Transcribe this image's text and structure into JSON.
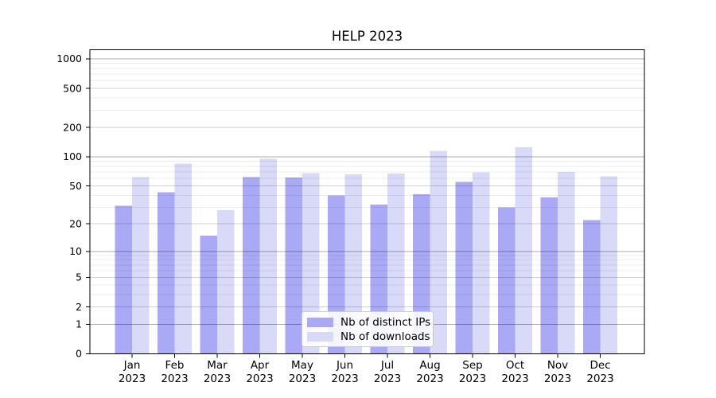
{
  "chart_data": {
    "type": "bar",
    "title": "HELP 2023",
    "categories": [
      "Jan 2023",
      "Feb 2023",
      "Mar 2023",
      "Apr 2023",
      "May 2023",
      "Jun 2023",
      "Jul 2023",
      "Aug 2023",
      "Sep 2023",
      "Oct 2023",
      "Nov 2023",
      "Dec 2023"
    ],
    "series": [
      {
        "name": "Nb of distinct IPs",
        "color": "#a9a9f5",
        "values": [
          31,
          43,
          15,
          62,
          61,
          40,
          32,
          41,
          55,
          30,
          38,
          22
        ]
      },
      {
        "name": "Nb of downloads",
        "color": "#d9d9f8",
        "values": [
          62,
          85,
          28,
          95,
          68,
          66,
          67,
          115,
          69,
          125,
          70,
          63
        ]
      }
    ],
    "yscale": "log1p",
    "ylim": [
      0,
      1240
    ],
    "y_ticks": [
      0,
      1,
      2,
      5,
      10,
      20,
      50,
      100,
      200,
      500,
      1000
    ],
    "y_minor_gridlines": [
      3,
      4,
      6,
      7,
      8,
      9,
      30,
      40,
      60,
      70,
      80,
      90,
      300,
      400,
      600,
      700,
      800,
      900
    ],
    "grid": "horizontal",
    "legend_position": "lower center",
    "colors": {
      "background": "#ffffff",
      "axis": "#000000",
      "grid_decade": "rgba(0,0,0,0.33)",
      "grid_labeled": "rgba(0,0,0,0.18)",
      "grid_minor": "rgba(0,0,0,0.07)",
      "text": "#000000"
    }
  }
}
